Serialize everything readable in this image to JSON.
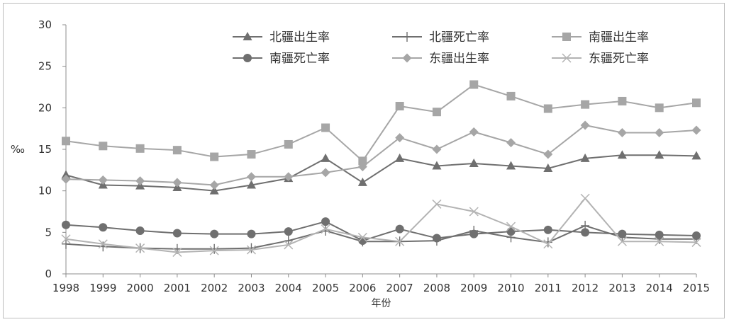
{
  "chart_data": {
    "type": "line",
    "title": "",
    "xlabel": "年份",
    "ylabel": "‰",
    "ylim": [
      0,
      30
    ],
    "yticks": [
      0,
      5,
      10,
      15,
      20,
      25,
      30
    ],
    "grid": false,
    "legend_position": "top-right",
    "categories": [
      "1998",
      "1999",
      "2000",
      "2001",
      "2002",
      "2003",
      "2004",
      "2005",
      "2006",
      "2007",
      "2008",
      "2009",
      "2010",
      "2011",
      "2012",
      "2013",
      "2014",
      "2015"
    ],
    "series": [
      {
        "name": "北疆出生率",
        "marker": "triangle",
        "color": "#6f6f6f",
        "values": [
          11.9,
          10.7,
          10.6,
          10.4,
          10.0,
          10.7,
          11.5,
          13.9,
          11.0,
          13.9,
          13.0,
          13.3,
          13.0,
          12.7,
          13.9,
          14.3,
          14.3,
          14.2
        ]
      },
      {
        "name": "北疆死亡率",
        "marker": "plus",
        "color": "#6f6f6f",
        "values": [
          3.6,
          3.3,
          3.1,
          3.0,
          3.0,
          3.1,
          4.0,
          5.2,
          3.9,
          3.9,
          4.0,
          5.2,
          4.4,
          3.8,
          5.8,
          4.4,
          4.2,
          4.2
        ]
      },
      {
        "name": "南疆出生率",
        "marker": "square",
        "color": "#a6a6a6",
        "values": [
          16.0,
          15.4,
          15.1,
          14.9,
          14.1,
          14.4,
          15.6,
          17.6,
          13.6,
          20.2,
          19.5,
          22.8,
          21.4,
          19.9,
          20.4,
          20.8,
          20.0,
          20.6
        ]
      },
      {
        "name": "南疆死亡率",
        "marker": "circle",
        "color": "#6f6f6f",
        "values": [
          5.9,
          5.6,
          5.2,
          4.9,
          4.8,
          4.8,
          5.1,
          6.3,
          4.0,
          5.4,
          4.3,
          4.8,
          5.1,
          5.3,
          5.0,
          4.8,
          4.7,
          4.6
        ]
      },
      {
        "name": "东疆出生率",
        "marker": "diamond",
        "color": "#a6a6a6",
        "values": [
          11.4,
          11.3,
          11.2,
          11.0,
          10.7,
          11.7,
          11.7,
          12.2,
          12.9,
          16.4,
          15.0,
          17.1,
          15.8,
          14.4,
          17.9,
          17.0,
          17.0,
          17.3
        ]
      },
      {
        "name": "东疆死亡率",
        "marker": "x",
        "color": "#b3b3b3",
        "values": [
          4.2,
          3.6,
          3.1,
          2.6,
          2.8,
          2.9,
          3.5,
          5.4,
          4.4,
          3.9,
          8.4,
          7.5,
          5.7,
          3.6,
          9.1,
          3.9,
          3.9,
          3.8
        ]
      }
    ]
  }
}
